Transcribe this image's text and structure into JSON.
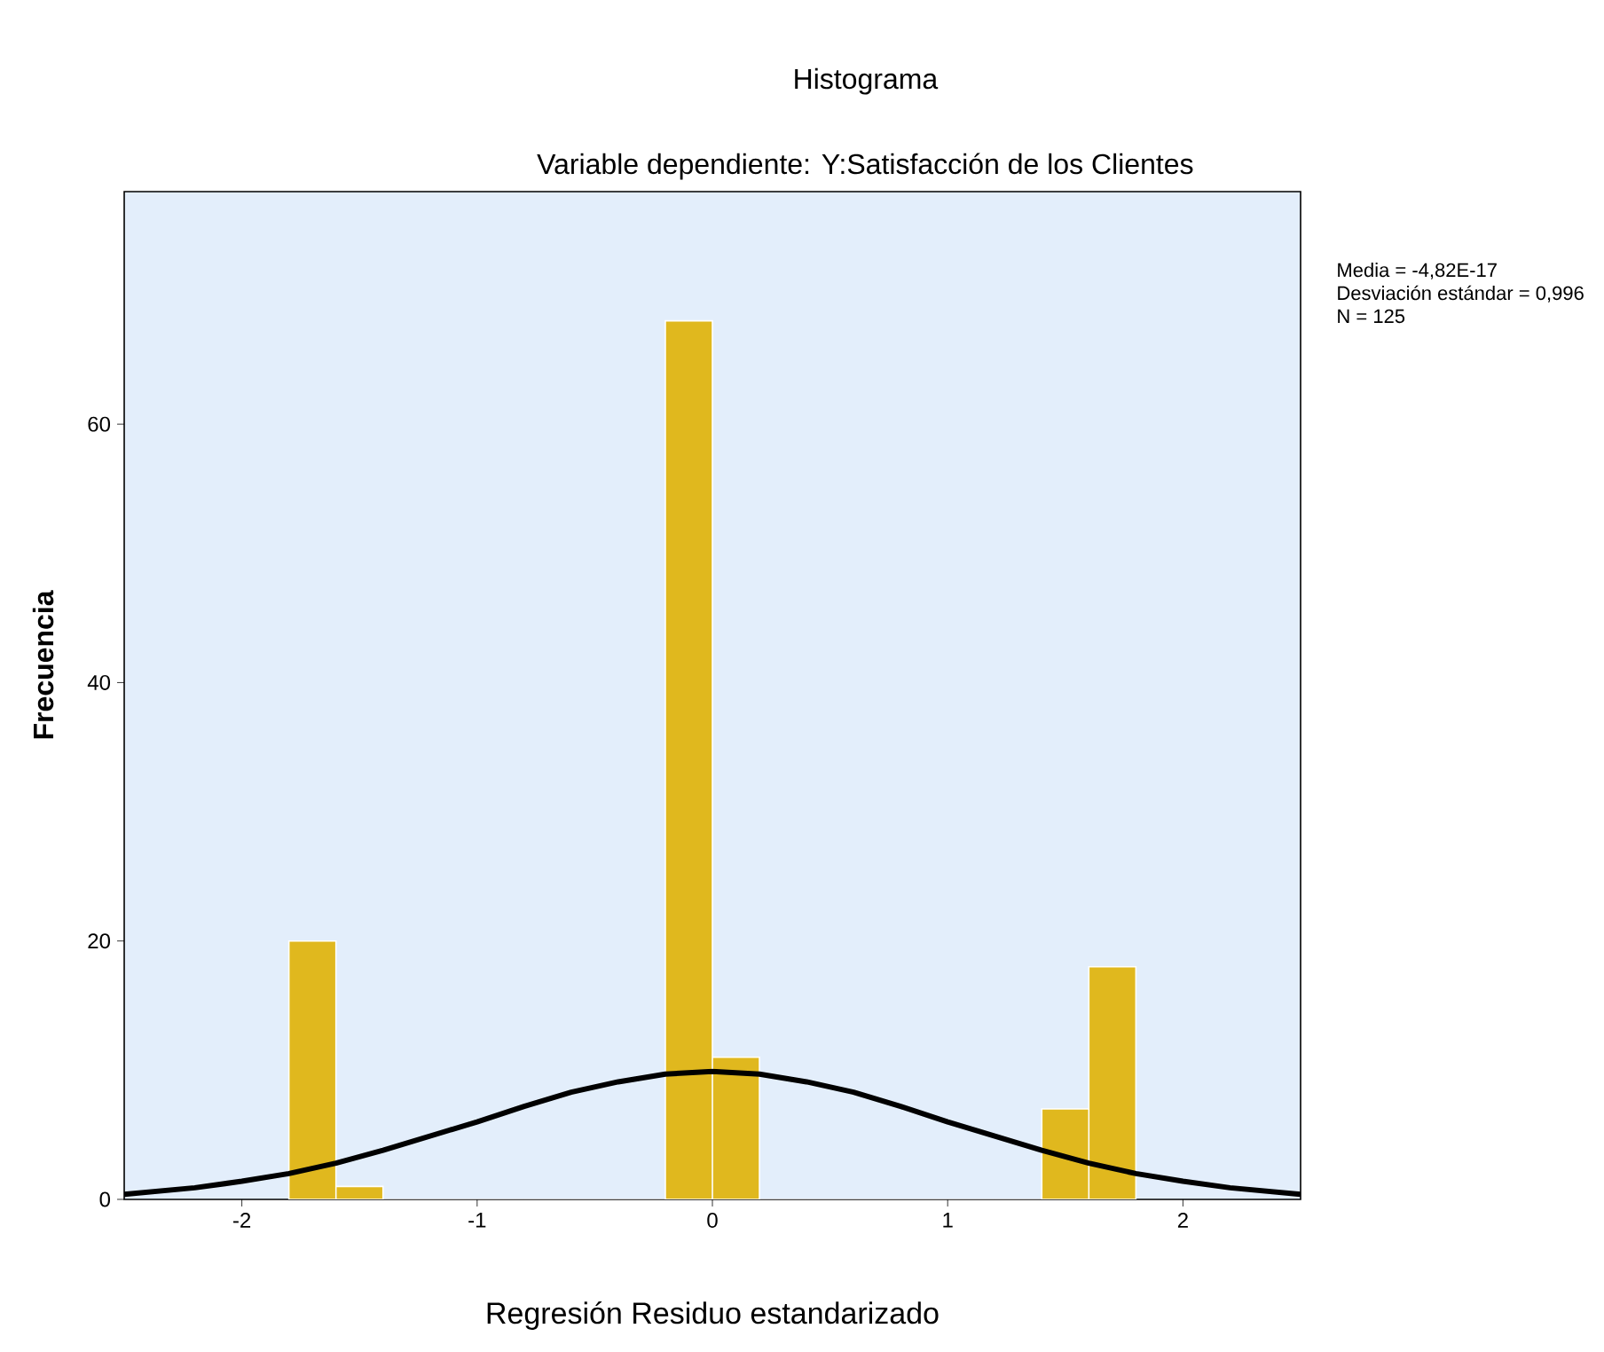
{
  "chart_data": {
    "type": "histogram",
    "title": "Histograma",
    "subtitle": "Variable dependiente: Y:Satisfacción de los Clientes",
    "xlabel": "Regresión Residuo estandarizado",
    "ylabel": "Frecuencia",
    "annotations": [
      "Media = -4,82E-17",
      "Desviación estándar = 0,996",
      "N = 125"
    ],
    "bins": [
      -1.8,
      -1.6,
      -1.4,
      -1.2,
      -1.0,
      -0.8,
      -0.6,
      -0.4,
      -0.2,
      0.0,
      0.2,
      0.4,
      0.6,
      0.8,
      1.0,
      1.2,
      1.4,
      1.6,
      1.8
    ],
    "values": [
      20,
      1,
      0,
      0,
      0,
      0,
      0,
      0,
      68,
      11,
      0,
      0,
      0,
      0,
      0,
      0,
      7,
      18
    ],
    "color": "#e0b81e",
    "series": [
      {
        "type": "line",
        "color": "#000000",
        "x": [
          -2.5,
          -2.2,
          -2.0,
          -1.8,
          -1.6,
          -1.4,
          -1.2,
          -1.0,
          -0.8,
          -0.6,
          -0.4,
          -0.2,
          0.0,
          0.2,
          0.4,
          0.6,
          0.8,
          1.0,
          1.2,
          1.4,
          1.6,
          1.8,
          2.0,
          2.2,
          2.5
        ],
        "values": [
          0.4,
          0.9,
          1.4,
          2.0,
          2.8,
          3.8,
          4.9,
          6.0,
          7.2,
          8.3,
          9.1,
          9.7,
          9.9,
          9.7,
          9.1,
          8.3,
          7.2,
          6.0,
          4.9,
          3.8,
          2.8,
          2.0,
          1.4,
          0.9,
          0.4
        ]
      }
    ],
    "xlim": [
      -2.5,
      2.5
    ],
    "ylim": [
      0,
      78
    ],
    "xticks": [
      -2,
      -1,
      0,
      1,
      2
    ],
    "yticks": [
      0,
      20,
      40,
      60
    ]
  }
}
